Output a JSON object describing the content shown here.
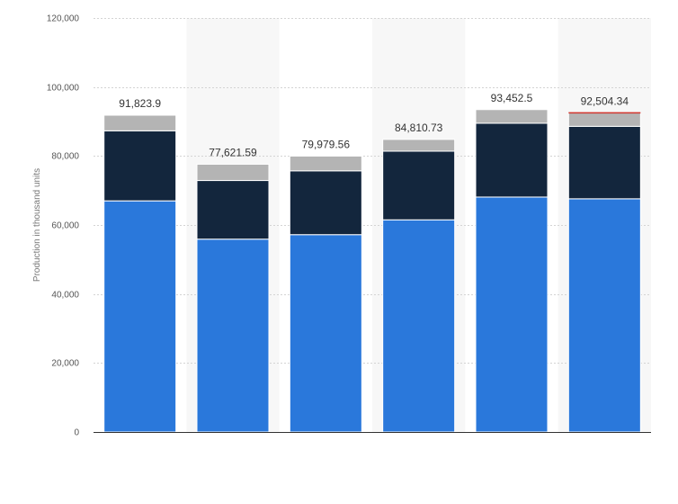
{
  "chart_data": {
    "type": "bar",
    "stacked": true,
    "ylabel": "Production in thousand units",
    "ylim": [
      0,
      120000
    ],
    "yticks": [
      "0",
      "20,000",
      "40,000",
      "60,000",
      "80,000",
      "100,000",
      "120,000"
    ],
    "ytick_values": [
      0,
      20000,
      40000,
      60000,
      80000,
      100000,
      120000
    ],
    "categories": [
      "",
      "",
      "",
      "",
      "",
      ""
    ],
    "grid": true,
    "colors": [
      "#2a78db",
      "#13263d",
      "#b4b4b4"
    ],
    "series": [
      {
        "values": [
          67000,
          55900,
          57200,
          61500,
          68100,
          67600
        ]
      },
      {
        "values": [
          20300,
          17000,
          18500,
          19900,
          21400,
          21000
        ]
      },
      {
        "values": [
          4523.9,
          4721.59,
          4279.56,
          3410.73,
          3952.5,
          3904.34
        ]
      }
    ],
    "totals": [
      91823.9,
      77621.59,
      79979.56,
      84810.73,
      93452.5,
      92504.34
    ],
    "total_labels": [
      "91,823.9",
      "77,621.59",
      "79,979.56",
      "84,810.73",
      "93,452.5",
      "92,504.34"
    ],
    "highlight_total_index": 5,
    "highlight_color": "#d0342c"
  }
}
